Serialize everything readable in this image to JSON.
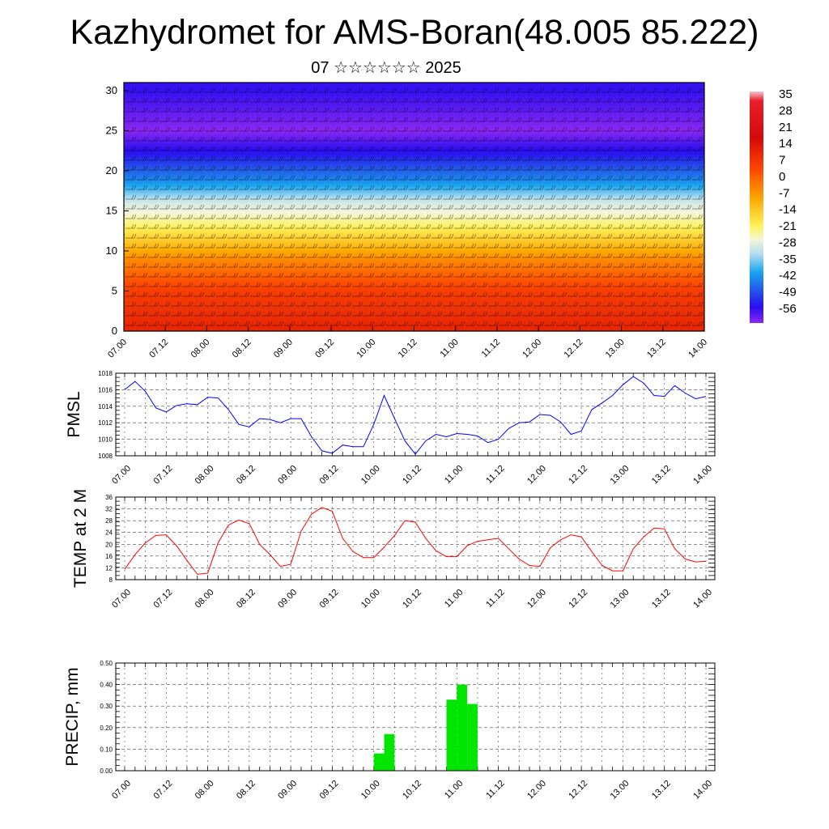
{
  "title": "Kazhydromet for AMS-Boran(48.005 85.222)",
  "subtitle": "07 ☆☆☆☆☆☆ 2025",
  "colors": {
    "pmsl_line": "#0000ff",
    "temp_line": "#ff0000",
    "precip_bar": "#00e600",
    "frame": "#000000",
    "grid": "#555555"
  },
  "chart_data": [
    {
      "type": "heatmap",
      "title": "",
      "ylabel": "",
      "ylim": [
        0,
        31
      ],
      "y_ticks": [
        "0",
        "5",
        "10",
        "15",
        "20",
        "25",
        "30"
      ],
      "x_ticks": [
        "07.00",
        "07.12",
        "08.00",
        "08.12",
        "09.00",
        "09.12",
        "10.00",
        "10.12",
        "11.00",
        "11.12",
        "12.00",
        "12.12",
        "13.00",
        "13.12",
        "14.00"
      ],
      "colorbar_labels": [
        "35",
        "28",
        "21",
        "14",
        "7",
        "0",
        "-7",
        "-14",
        "-21",
        "-28",
        "-35",
        "-42",
        "-49",
        "-56"
      ],
      "colorbar_range": [
        -60,
        38
      ],
      "bands": [
        {
          "level": 0,
          "value": 20
        },
        {
          "level": 5,
          "value": 16
        },
        {
          "level": 9,
          "value": 7
        },
        {
          "level": 13,
          "value": -6
        },
        {
          "level": 16,
          "value": -16
        },
        {
          "level": 19,
          "value": -35
        },
        {
          "level": 22,
          "value": -50
        },
        {
          "level": 25,
          "value": -60
        },
        {
          "level": 30,
          "value": -53
        }
      ],
      "overlay": "wind barbs"
    },
    {
      "type": "line",
      "ylabel": "PMSL",
      "ylim": [
        1008,
        1018
      ],
      "y_ticks": [
        "1008",
        "1010",
        "1012",
        "1014",
        "1016",
        "1018"
      ],
      "x_ticks": [
        "07.00",
        "07.12",
        "08.00",
        "08.12",
        "09.00",
        "09.12",
        "10.00",
        "10.12",
        "11.00",
        "11.12",
        "12.00",
        "12.12",
        "13.00",
        "13.12",
        "14.00"
      ],
      "grid": true,
      "x_hours": [
        0,
        3,
        6,
        9,
        12,
        15,
        18,
        21,
        24,
        27,
        30,
        33,
        36,
        39,
        42,
        45,
        48,
        51,
        54,
        57,
        60,
        63,
        66,
        69,
        72,
        75,
        78,
        81,
        84,
        87,
        90,
        93,
        96,
        99,
        102,
        105,
        108,
        111,
        114,
        117,
        120,
        123,
        126,
        129,
        132,
        135,
        138,
        141,
        144,
        147,
        150,
        153,
        156,
        159,
        162,
        165,
        168
      ],
      "values": [
        1016,
        1017,
        1015.8,
        1013.8,
        1013.3,
        1014.1,
        1014.3,
        1014.2,
        1015.1,
        1015,
        1013.6,
        1011.8,
        1011.5,
        1012.5,
        1012.4,
        1012,
        1012.5,
        1012.5,
        1010.3,
        1008.6,
        1008.3,
        1009.3,
        1009.1,
        1009.1,
        1011.8,
        1015.3,
        1012.5,
        1009.8,
        1008.2,
        1009.8,
        1010.6,
        1010.3,
        1010.7,
        1010.6,
        1010.4,
        1009.6,
        1010,
        1011.3,
        1012,
        1012.1,
        1013,
        1012.9,
        1012.1,
        1010.6,
        1011,
        1013.6,
        1014.4,
        1015.3,
        1016.6,
        1017.6,
        1016.8,
        1015.3,
        1015.2,
        1016.5,
        1015.6,
        1014.9,
        1015.2
      ]
    },
    {
      "type": "line",
      "ylabel": "TEMP at 2 M",
      "ylim": [
        8,
        36
      ],
      "y_ticks": [
        "8",
        "12",
        "16",
        "20",
        "24",
        "28",
        "32",
        "36"
      ],
      "x_ticks": [
        "07.00",
        "07.12",
        "08.00",
        "08.12",
        "09.00",
        "09.12",
        "10.00",
        "10.12",
        "11.00",
        "11.12",
        "12.00",
        "12.12",
        "13.00",
        "13.12",
        "14.00"
      ],
      "grid": true,
      "x_hours": [
        0,
        3,
        6,
        9,
        12,
        15,
        18,
        21,
        24,
        27,
        30,
        33,
        36,
        39,
        42,
        45,
        48,
        51,
        54,
        57,
        60,
        63,
        66,
        69,
        72,
        75,
        78,
        81,
        84,
        87,
        90,
        93,
        96,
        99,
        102,
        105,
        108,
        111,
        114,
        117,
        120,
        123,
        126,
        129,
        132,
        135,
        138,
        141,
        144,
        147,
        150,
        153,
        156,
        159,
        162,
        165,
        168
      ],
      "values": [
        11.5,
        16.5,
        20.5,
        23,
        23.2,
        19.5,
        14.5,
        9.8,
        10.2,
        20.5,
        26.5,
        28.2,
        27,
        20,
        16.5,
        12.5,
        13.2,
        24.5,
        30.2,
        32.5,
        31.2,
        22,
        17.5,
        15.5,
        15.5,
        19,
        23,
        28,
        27.5,
        22,
        17.8,
        15.8,
        15.8,
        19.5,
        21,
        21.5,
        22,
        18.5,
        15,
        12.8,
        12.5,
        18.8,
        21.5,
        23.2,
        22.5,
        17.5,
        12.8,
        11,
        11,
        18.5,
        22.5,
        25.5,
        25.2,
        18.5,
        15,
        14,
        14.2
      ]
    },
    {
      "type": "bar",
      "ylabel": "PRECIP, mm",
      "ylim": [
        0,
        0.5
      ],
      "y_ticks": [
        "0.00",
        "0.10",
        "0.20",
        "0.30",
        "0.40",
        "0.50"
      ],
      "x_ticks": [
        "07.00",
        "07.12",
        "08.00",
        "08.12",
        "09.00",
        "09.12",
        "10.00",
        "10.12",
        "11.00",
        "11.12",
        "12.00",
        "12.12",
        "13.00",
        "13.12",
        "14.00"
      ],
      "grid": true,
      "x_hours": [
        72,
        75,
        93,
        96,
        99
      ],
      "values": [
        0.08,
        0.17,
        0.33,
        0.4,
        0.31
      ]
    }
  ]
}
